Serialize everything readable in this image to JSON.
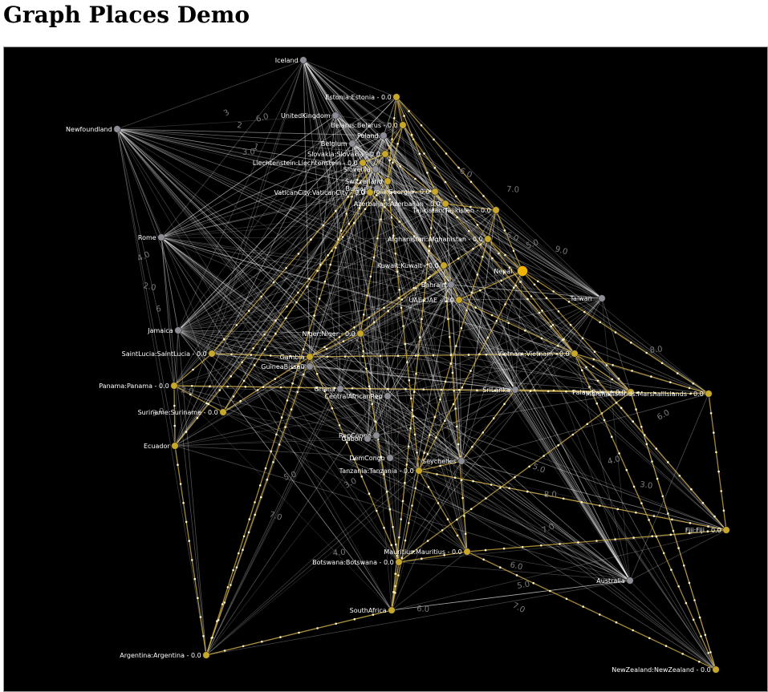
{
  "page": {
    "title": "Graph Places Demo"
  },
  "colors": {
    "background": "#000000",
    "neutral_node": "#8e8e96",
    "highlight_node": "#c8a82a",
    "focus_node": "#f0b400",
    "neutral_edge": "#ffffff",
    "highlight_edge": "#d9b64a",
    "label": "#ffffff",
    "edge_label": "#7c7c7c"
  },
  "graph": {
    "nodes": [
      {
        "id": "iceland",
        "label": "Iceland",
        "highlight": false
      },
      {
        "id": "estonia",
        "label": "Estonia:Estonia - 0.0",
        "highlight": true
      },
      {
        "id": "uk",
        "label": "UnitedKingdom",
        "highlight": false
      },
      {
        "id": "newfoundland",
        "label": "Newfoundland",
        "highlight": false
      },
      {
        "id": "belarus",
        "label": "Belarus:Belarus - 0.0",
        "highlight": true
      },
      {
        "id": "poland",
        "label": "Poland",
        "highlight": false
      },
      {
        "id": "belgium",
        "label": "Belgium",
        "highlight": false
      },
      {
        "id": "slovakia",
        "label": "Slovakia:Slovakia - 0.0",
        "highlight": true
      },
      {
        "id": "liechtenstein",
        "label": "Liechtenstein:Liechtenstein - 0.0",
        "highlight": true
      },
      {
        "id": "slovenia",
        "label": "Slovenia",
        "highlight": false
      },
      {
        "id": "switzerland",
        "label": "Switzerland",
        "highlight": true
      },
      {
        "id": "bulgaria",
        "label": "Bulgaria",
        "highlight": false
      },
      {
        "id": "georgia",
        "label": "Georgia:Georgia - 0.0",
        "highlight": true
      },
      {
        "id": "vatican",
        "label": "VaticanCity:VaticanCity - 0.0",
        "highlight": true
      },
      {
        "id": "azerbaijan",
        "label": "Azerbaijan:Azerbaijan - 0.0",
        "highlight": true
      },
      {
        "id": "tajikistan",
        "label": "Tajikistan:Tajikistan - 0.0",
        "highlight": true
      },
      {
        "id": "rome",
        "label": "Rome",
        "highlight": false
      },
      {
        "id": "afghanistan",
        "label": "Afghanistan:Afghanistan - 0.0",
        "highlight": true
      },
      {
        "id": "kuwait",
        "label": "Kuwait:Kuwait - 0.0",
        "highlight": true
      },
      {
        "id": "nepal",
        "label": "Nepal",
        "highlight": true,
        "focus": true
      },
      {
        "id": "bahrain",
        "label": "Bahrain",
        "highlight": false
      },
      {
        "id": "uae",
        "label": "UAE:UAE - 0.0",
        "highlight": true
      },
      {
        "id": "taiwan",
        "label": "Taiwan",
        "highlight": false
      },
      {
        "id": "jamaica",
        "label": "Jamaica",
        "highlight": false
      },
      {
        "id": "niger",
        "label": "Niger:Niger - 0.0",
        "highlight": true
      },
      {
        "id": "saintlucia",
        "label": "SaintLucia:SaintLucia - 0.0",
        "highlight": true
      },
      {
        "id": "gambia",
        "label": "Gambia",
        "highlight": true
      },
      {
        "id": "vietnam",
        "label": "Vietnam:Vietnam - 0.0",
        "highlight": true
      },
      {
        "id": "guineabissau",
        "label": "GuineaBissau",
        "highlight": false
      },
      {
        "id": "panama",
        "label": "Panama:Panama - 0.0",
        "highlight": true
      },
      {
        "id": "ghana",
        "label": "Ghana",
        "highlight": false
      },
      {
        "id": "srilanka",
        "label": "SriLanka",
        "highlight": false
      },
      {
        "id": "palau",
        "label": "Palau:Palau - 0.0",
        "highlight": true
      },
      {
        "id": "marshall",
        "label": "MarshallIslands:MarshallIslands - 0.0",
        "highlight": true
      },
      {
        "id": "car",
        "label": "CentralAfricanRep",
        "highlight": false
      },
      {
        "id": "suriname",
        "label": "Suriname:Suriname - 0.0",
        "highlight": true
      },
      {
        "id": "repcongo",
        "label": "RepCongo",
        "highlight": false
      },
      {
        "id": "gabon",
        "label": "Gabon",
        "highlight": false
      },
      {
        "id": "ecuador",
        "label": "Ecuador",
        "highlight": true
      },
      {
        "id": "demcongo",
        "label": "DemCongo",
        "highlight": false
      },
      {
        "id": "seychelles",
        "label": "Seychelles",
        "highlight": false
      },
      {
        "id": "tanzania",
        "label": "Tanzania:Tanzania - 0.0",
        "highlight": true
      },
      {
        "id": "fiji",
        "label": "Fiji:Fiji - 0.0",
        "highlight": true
      },
      {
        "id": "mauritius",
        "label": "Mauritius:Mauritius - 0.0",
        "highlight": true
      },
      {
        "id": "botswana",
        "label": "Botswana:Botswana - 0.0",
        "highlight": true
      },
      {
        "id": "australia",
        "label": "Australia",
        "highlight": false
      },
      {
        "id": "southafrica",
        "label": "SouthAfrica",
        "highlight": true
      },
      {
        "id": "argentina",
        "label": "Argentina:Argentina - 0.0",
        "highlight": true
      },
      {
        "id": "newzealand",
        "label": "NewZealand:NewZealand - 0.0",
        "highlight": true
      }
    ],
    "edge_labels": [
      "3",
      "2",
      "6.0",
      "1",
      "3.0",
      "4.0",
      "2.0",
      "6",
      "6.0",
      "7.0",
      "5.0",
      "9.0",
      "8.0",
      "6.0",
      "3.0",
      "4.0",
      "5.0",
      "8.0",
      "7.0",
      "6.0",
      "5.0",
      "7.0",
      "6.0",
      "5.0",
      "7.0",
      "4.0",
      "3.0",
      "2.0",
      "3.0",
      "6.0"
    ],
    "highlight_paths": [
      [
        "argentina",
        "ecuador",
        "panama",
        "suriname",
        "gambia",
        "niger",
        "kuwait",
        "uae",
        "vietnam",
        "marshall",
        "fiji",
        "mauritius",
        "botswana",
        "southafrica",
        "argentina"
      ],
      [
        "southafrica",
        "tanzania",
        "seychelles",
        "srilanka",
        "palau",
        "newzealand"
      ],
      [
        "botswana",
        "gambia",
        "saintlucia",
        "panama"
      ],
      [
        "estonia",
        "belarus",
        "slovakia",
        "liechtenstein",
        "vatican",
        "georgia",
        "azerbaijan",
        "tajikistan",
        "afghanistan",
        "nepal",
        "uae"
      ],
      [
        "argentina",
        "liechtenstein",
        "switzerland",
        "belarus",
        "afghanistan",
        "vietnam",
        "fiji"
      ],
      [
        "ecuador",
        "switzerland",
        "tanzania",
        "mauritius"
      ],
      [
        "southafrica",
        "georgia",
        "estonia",
        "tajikistan",
        "nepal",
        "marshall"
      ],
      [
        "suriname",
        "vatican",
        "kuwait",
        "mauritius",
        "newzealand"
      ],
      [
        "saintlucia",
        "slovakia",
        "azerbaijan",
        "vietnam",
        "palau",
        "botswana"
      ],
      [
        "botswana",
        "niger",
        "switzerland",
        "estonia"
      ],
      [
        "tanzania",
        "nepal",
        "palau"
      ],
      [
        "gambia",
        "vietnam",
        "newzealand"
      ],
      [
        "panama",
        "marshall"
      ],
      [
        "argentina",
        "gambia",
        "afghanistan",
        "tanzania",
        "fiji"
      ]
    ]
  }
}
